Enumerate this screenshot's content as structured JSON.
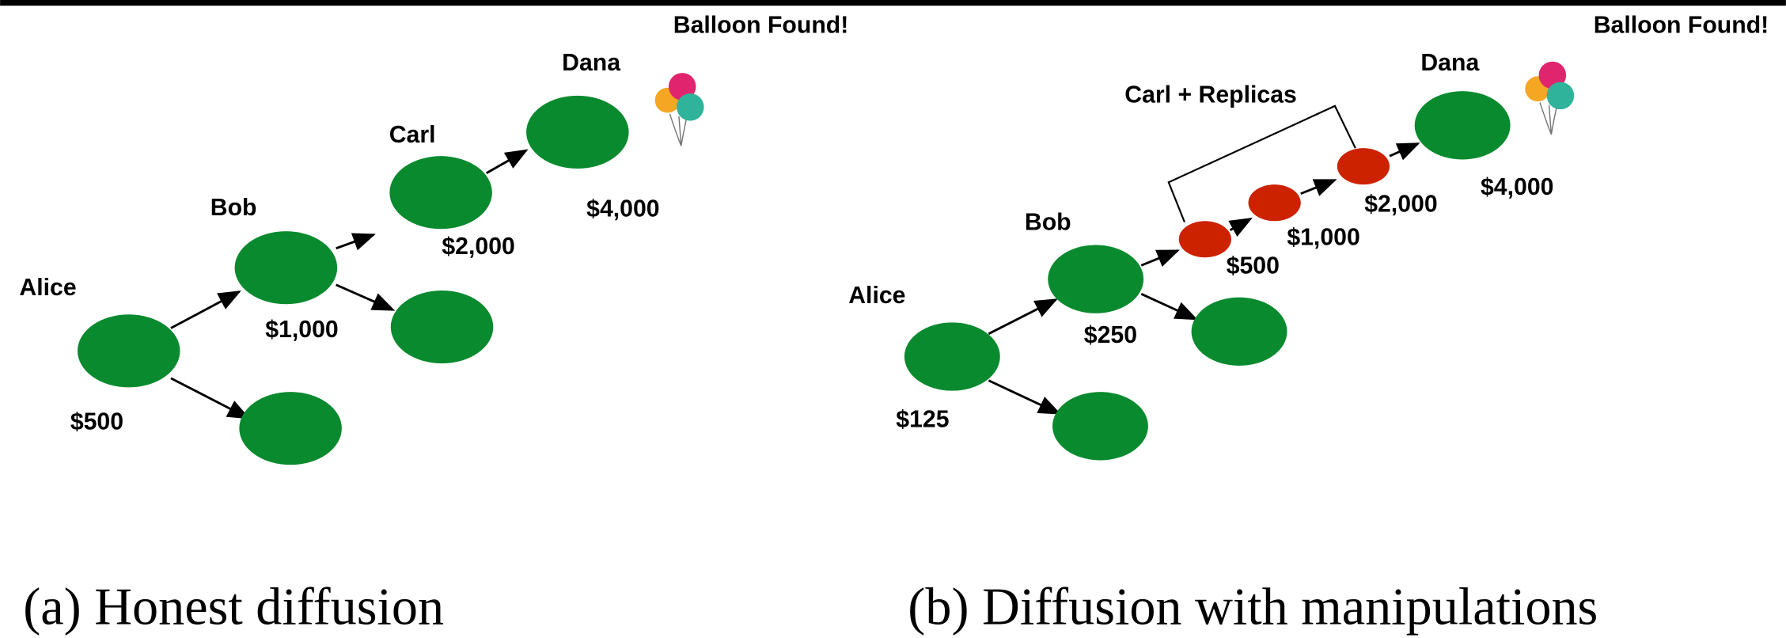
{
  "panels": [
    {
      "balloon_label": "Balloon Found!",
      "caption": "(a) Honest diffusion",
      "nodes": [
        {
          "name": "Alice",
          "reward": "$500"
        },
        {
          "name": "Bob",
          "reward": "$1,000"
        },
        {
          "name": "Carl",
          "reward": "$2,000"
        },
        {
          "name": "Dana",
          "reward": "$4,000"
        }
      ]
    },
    {
      "balloon_label": "Balloon Found!",
      "caption": "(b) Diffusion with manipulations",
      "nodes": [
        {
          "name": "Alice",
          "reward": "$125"
        },
        {
          "name": "Bob",
          "reward": "$250"
        },
        {
          "name": "Dana",
          "reward": "$4,000"
        }
      ],
      "replicas": {
        "label": "Carl + Replicas",
        "rewards": [
          "$500",
          "$1,000",
          "$2,000"
        ]
      }
    }
  ]
}
